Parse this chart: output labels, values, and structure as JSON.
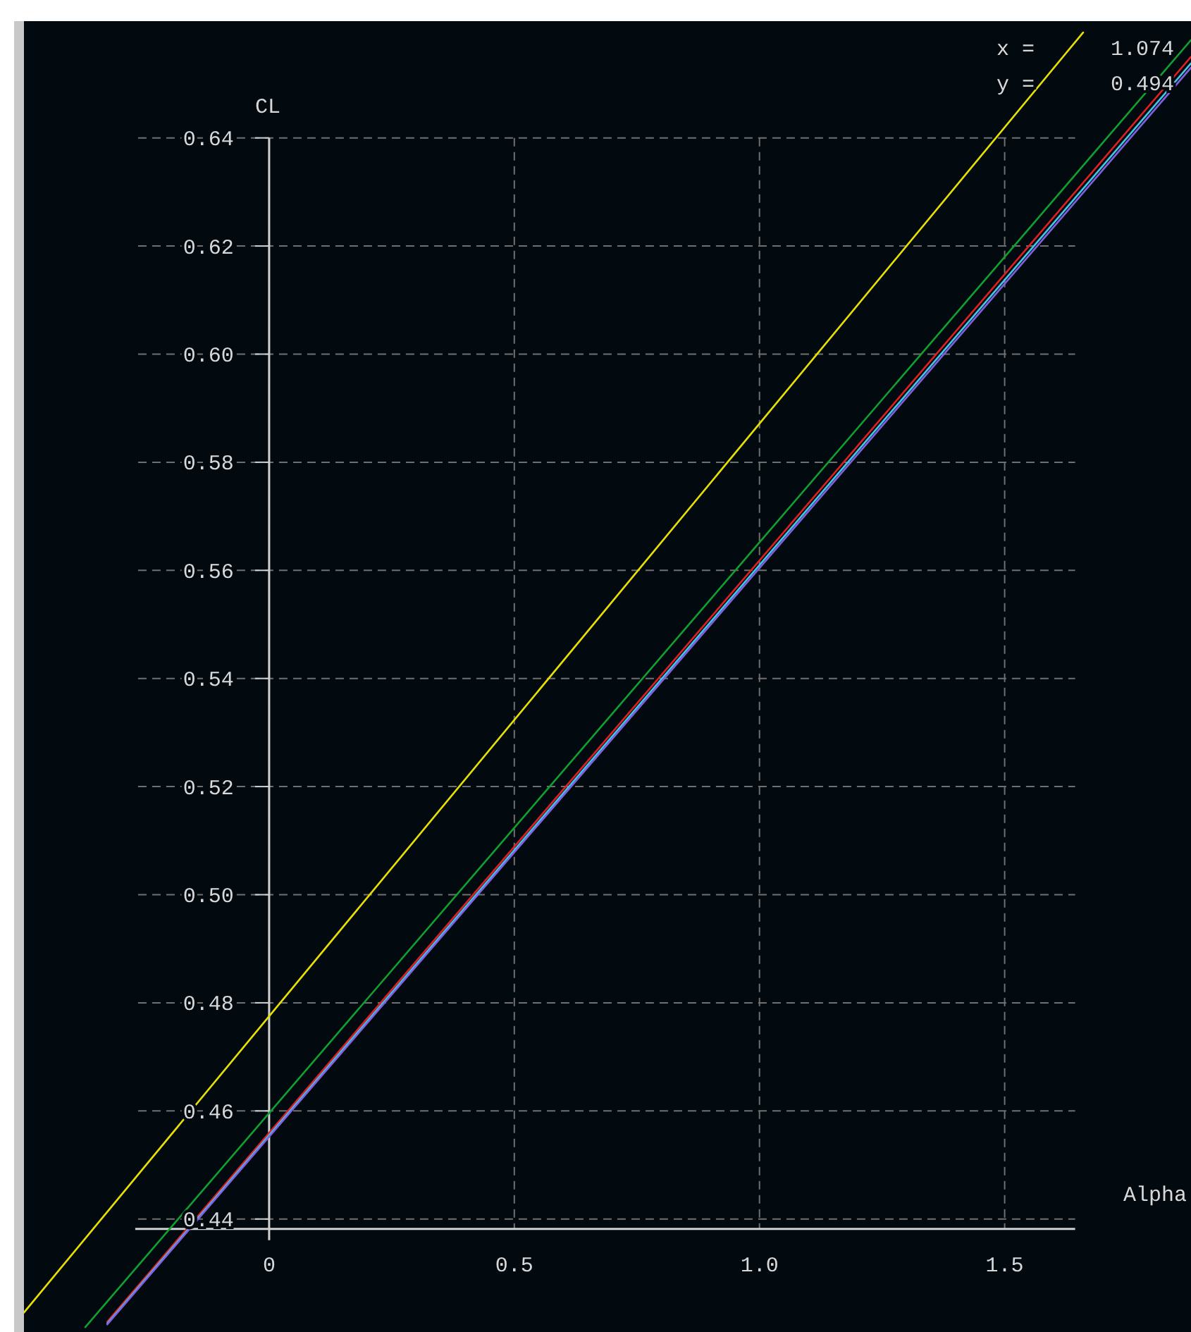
{
  "chart_data": {
    "type": "line",
    "xlabel": "Alpha",
    "ylabel": "CL",
    "annotations": [
      "x =      1.074",
      "y =      0.494"
    ],
    "xlim": [
      -0.5,
      1.88
    ],
    "ylim": [
      0.4191,
      0.6616
    ],
    "xticks": [
      0,
      0.5,
      {
        "value": 1,
        "label": "1.0"
      },
      1.5
    ],
    "yticks": [
      0.44,
      0.46,
      0.48,
      {
        "value": 0.5,
        "label": "0.50"
      },
      0.52,
      0.54,
      0.56,
      0.58,
      {
        "value": 0.6,
        "label": "0.60"
      },
      0.62,
      0.64
    ],
    "grid": true,
    "line_style": "solid",
    "marker": "none",
    "series": [
      {
        "color": "#e8e000",
        "x": [
          -0.5,
          1.66
        ],
        "values": [
          0.4227,
          0.6595
        ]
      },
      {
        "color": "#10a030",
        "x": [
          -0.375,
          1.88
        ],
        "values": [
          0.42,
          0.6581
        ]
      },
      {
        "color": "#e02020",
        "x": [
          -0.33,
          1.88
        ],
        "values": [
          0.421,
          0.655
        ]
      },
      {
        "color": "#40c8e8",
        "x": [
          -0.33,
          1.88
        ],
        "values": [
          0.4207,
          0.6538
        ]
      },
      {
        "color": "#8060e0",
        "x": [
          -0.33,
          1.88
        ],
        "values": [
          0.4205,
          0.653
        ]
      }
    ]
  }
}
